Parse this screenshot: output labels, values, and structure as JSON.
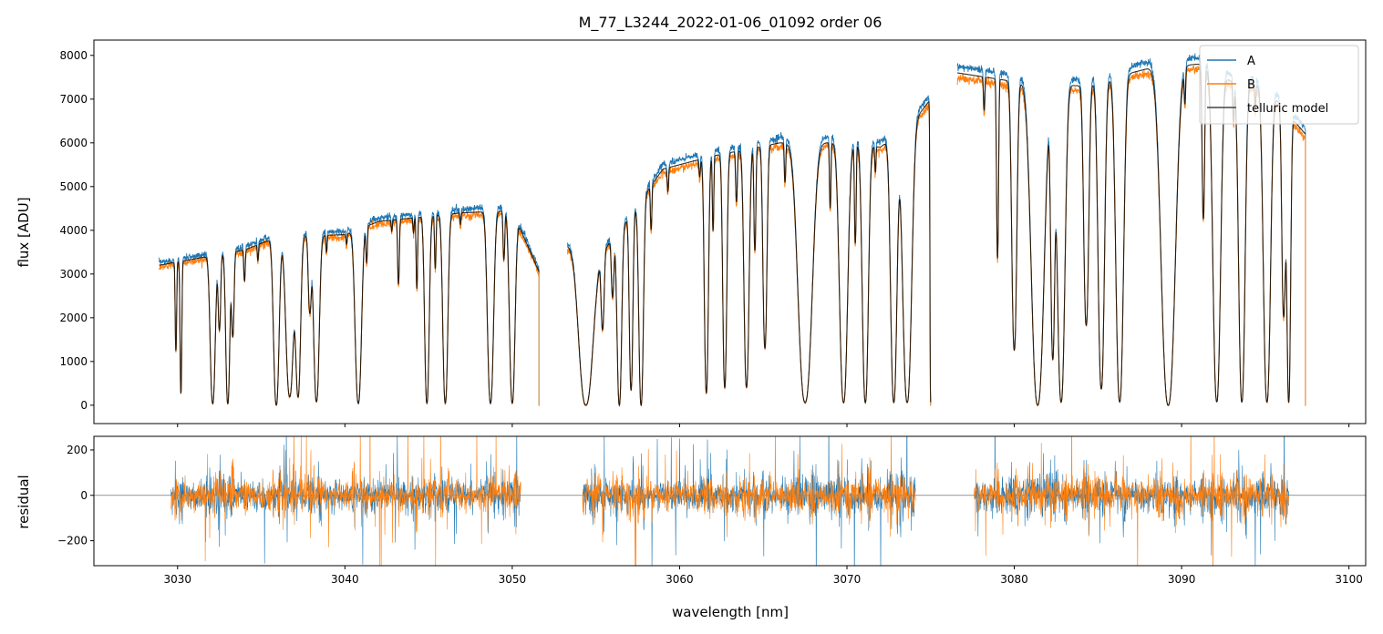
{
  "chart_data": {
    "type": "line",
    "title": "M_77_L3244_2022-01-06_01092  order 06",
    "xlabel": "wavelength [nm]",
    "xlim": [
      3025.0,
      3101.0
    ],
    "x_ticks": [
      3030,
      3040,
      3050,
      3060,
      3070,
      3080,
      3090,
      3100
    ],
    "x_tick_labels": [
      "3030",
      "3040",
      "3050",
      "3060",
      "3070",
      "3080",
      "3090",
      "3100"
    ],
    "panels": [
      {
        "name": "flux",
        "ylabel": "flux [ADU]",
        "ylim": [
          -420,
          8350
        ],
        "y_ticks": [
          0,
          1000,
          2000,
          3000,
          4000,
          5000,
          6000,
          7000,
          8000
        ],
        "y_tick_labels": [
          "0",
          "1000",
          "2000",
          "3000",
          "4000",
          "5000",
          "6000",
          "7000",
          "8000"
        ],
        "segments": [
          {
            "x_range": [
              3028.9,
              3051.6
            ],
            "continuum": [
              [
                3028.9,
                3200
              ],
              [
                3034,
                3550
              ],
              [
                3036,
                3850
              ],
              [
                3040,
                3900
              ],
              [
                3042,
                4200
              ],
              [
                3047,
                4400
              ],
              [
                3050,
                4450
              ],
              [
                3051.6,
                3050
              ]
            ]
          },
          {
            "x_range": [
              3053.3,
              3075.0
            ],
            "continuum": [
              [
                3053.3,
                3650
              ],
              [
                3055,
                3300
              ],
              [
                3057,
                4300
              ],
              [
                3059,
                5400
              ],
              [
                3062,
                5700
              ],
              [
                3066,
                6000
              ],
              [
                3070,
                6000
              ],
              [
                3072,
                5900
              ],
              [
                3074,
                6500
              ],
              [
                3075,
                7000
              ]
            ]
          },
          {
            "x_range": [
              3076.6,
              3097.4
            ],
            "continuum": [
              [
                3076.6,
                7600
              ],
              [
                3080,
                7400
              ],
              [
                3084,
                7300
              ],
              [
                3088,
                7700
              ],
              [
                3091,
                7800
              ],
              [
                3093,
                7400
              ],
              [
                3095,
                7300
              ],
              [
                3096.5,
                6600
              ],
              [
                3097.4,
                6200
              ]
            ]
          }
        ],
        "absorption_lines": [
          [
            3029.9,
            0.62,
            0.06
          ],
          [
            3030.2,
            0.92,
            0.07
          ],
          [
            3032.1,
            0.99,
            0.2
          ],
          [
            3032.5,
            0.5,
            0.1
          ],
          [
            3033.0,
            0.99,
            0.16
          ],
          [
            3033.3,
            0.55,
            0.1
          ],
          [
            3034.0,
            0.2,
            0.06
          ],
          [
            3034.8,
            0.1,
            0.05
          ],
          [
            3035.9,
            1.0,
            0.22
          ],
          [
            3036.7,
            0.95,
            0.3
          ],
          [
            3037.2,
            0.95,
            0.2
          ],
          [
            3037.9,
            0.45,
            0.12
          ],
          [
            3038.3,
            0.98,
            0.22
          ],
          [
            3038.9,
            0.1,
            0.05
          ],
          [
            3040.1,
            0.06,
            0.05
          ],
          [
            3040.8,
            0.99,
            0.25
          ],
          [
            3041.3,
            0.2,
            0.06
          ],
          [
            3042.8,
            0.06,
            0.05
          ],
          [
            3043.2,
            0.35,
            0.07
          ],
          [
            3044.1,
            0.08,
            0.05
          ],
          [
            3044.3,
            0.38,
            0.06
          ],
          [
            3044.9,
            0.99,
            0.18
          ],
          [
            3045.4,
            0.28,
            0.06
          ],
          [
            3046.0,
            0.99,
            0.2
          ],
          [
            3046.9,
            0.06,
            0.05
          ],
          [
            3048.7,
            0.99,
            0.24
          ],
          [
            3049.5,
            0.25,
            0.07
          ],
          [
            3050.0,
            0.99,
            0.22
          ],
          [
            3054.4,
            1.0,
            0.55
          ],
          [
            3055.4,
            0.5,
            0.12
          ],
          [
            3056.0,
            0.35,
            0.1
          ],
          [
            3056.4,
            1.0,
            0.18
          ],
          [
            3057.1,
            0.92,
            0.14
          ],
          [
            3057.7,
            1.0,
            0.18
          ],
          [
            3058.3,
            0.2,
            0.06
          ],
          [
            3059.3,
            0.1,
            0.06
          ],
          [
            3061.2,
            0.07,
            0.06
          ],
          [
            3061.6,
            0.95,
            0.16
          ],
          [
            3062.0,
            0.3,
            0.06
          ],
          [
            3062.7,
            0.93,
            0.16
          ],
          [
            3063.4,
            0.2,
            0.07
          ],
          [
            3064.0,
            0.93,
            0.2
          ],
          [
            3064.5,
            0.4,
            0.08
          ],
          [
            3065.1,
            0.78,
            0.16
          ],
          [
            3066.3,
            0.15,
            0.06
          ],
          [
            3067.5,
            0.99,
            0.55
          ],
          [
            3069.0,
            0.25,
            0.06
          ],
          [
            3069.8,
            0.99,
            0.32
          ],
          [
            3070.5,
            0.38,
            0.07
          ],
          [
            3071.1,
            0.99,
            0.24
          ],
          [
            3071.7,
            0.1,
            0.05
          ],
          [
            3072.8,
            0.99,
            0.25
          ],
          [
            3073.6,
            0.99,
            0.35
          ],
          [
            3075.0,
            0.99,
            0.05
          ],
          [
            3078.2,
            0.1,
            0.06
          ],
          [
            3079.0,
            0.55,
            0.08
          ],
          [
            3080.0,
            0.83,
            0.2
          ],
          [
            3081.4,
            1.0,
            0.5
          ],
          [
            3082.3,
            0.85,
            0.16
          ],
          [
            3082.8,
            0.99,
            0.3
          ],
          [
            3084.3,
            0.75,
            0.2
          ],
          [
            3085.2,
            0.95,
            0.25
          ],
          [
            3086.3,
            0.99,
            0.3
          ],
          [
            3089.2,
            1.0,
            0.55
          ],
          [
            3090.2,
            0.1,
            0.06
          ],
          [
            3091.3,
            0.45,
            0.1
          ],
          [
            3092.1,
            0.99,
            0.3
          ],
          [
            3093.1,
            0.12,
            0.06
          ],
          [
            3093.6,
            0.99,
            0.25
          ],
          [
            3094.4,
            0.08,
            0.05
          ],
          [
            3095.1,
            0.99,
            0.28
          ],
          [
            3096.1,
            0.7,
            0.15
          ],
          [
            3096.4,
            0.99,
            0.15
          ]
        ],
        "legend": {
          "position": "top-right",
          "entries": [
            "A",
            "B",
            "telluric model"
          ]
        }
      },
      {
        "name": "residual",
        "ylabel": "residual",
        "ylim": [
          -310,
          260
        ],
        "y_ticks": [
          -200,
          0,
          200
        ],
        "y_tick_labels": [
          "−200",
          "0",
          "200"
        ],
        "segments": [
          [
            3029.6,
            3050.5
          ],
          [
            3054.2,
            3074.1
          ],
          [
            3077.6,
            3096.4
          ]
        ],
        "typical_amplitude": 80,
        "zero_line": 0
      }
    ],
    "series": [
      {
        "name": "A",
        "color": "#1f77b4"
      },
      {
        "name": "B",
        "color": "#ff7f0e"
      },
      {
        "name": "telluric model",
        "color": "#000000"
      }
    ]
  }
}
